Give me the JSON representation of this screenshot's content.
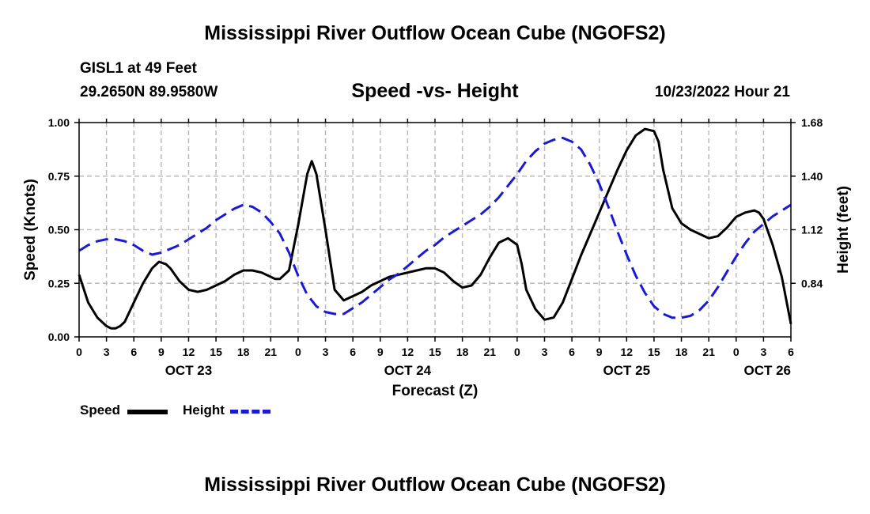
{
  "title": "Mississippi River Outflow Ocean Cube (NGOFS2)",
  "station": "GISL1 at 49 Feet",
  "coordinates": "29.2650N  89.9580W",
  "subtitle": "Speed -vs- Height",
  "datetime": "10/23/2022 Hour 21",
  "footer_title": "Mississippi River Outflow Ocean Cube (NGOFS2)",
  "legend": {
    "speed_label": "Speed",
    "height_label": "Height"
  },
  "colors": {
    "speed": "#000000",
    "height": "#1a1ad6",
    "grid": "#bbbbbb"
  },
  "chart_data": {
    "type": "line",
    "xlabel": "Forecast (Z)",
    "ylabel_left": "Speed (Knots)",
    "ylabel_right": "Height (feet)",
    "xlim": [
      0,
      78
    ],
    "ylim_left": [
      0,
      1
    ],
    "ylim_right": [
      0.56,
      1.68
    ],
    "grid": true,
    "x_tick_labels": [
      "0",
      "3",
      "6",
      "9",
      "12",
      "15",
      "18",
      "21",
      "0",
      "3",
      "6",
      "9",
      "12",
      "15",
      "18",
      "21",
      "0",
      "3",
      "6",
      "9",
      "12",
      "15",
      "18",
      "21",
      "0",
      "3",
      "6"
    ],
    "left_ticks": [
      {
        "value": 0,
        "label": "0.00"
      },
      {
        "value": 0.25,
        "label": "0.25"
      },
      {
        "value": 0.5,
        "label": "0.50"
      },
      {
        "value": 0.75,
        "label": "0.75"
      },
      {
        "value": 1.0,
        "label": "1.00"
      }
    ],
    "right_ticks": [
      {
        "value": 0.84,
        "label": "0.84"
      },
      {
        "value": 1.12,
        "label": "1.12"
      },
      {
        "value": 1.4,
        "label": "1.40"
      },
      {
        "value": 1.68,
        "label": "1.68"
      }
    ],
    "day_labels": [
      {
        "hour": 12,
        "label": "OCT 23"
      },
      {
        "hour": 36,
        "label": "OCT 24"
      },
      {
        "hour": 60,
        "label": "OCT 25"
      },
      {
        "hour": 75,
        "label": "OCT 26"
      }
    ],
    "series": [
      {
        "name": "Speed",
        "axis": "left",
        "style": "solid",
        "x": [
          0,
          1,
          2,
          3,
          3.5,
          4,
          4.5,
          5,
          6,
          7,
          8,
          8.75,
          9.5,
          10,
          11,
          12,
          13,
          14,
          15,
          16,
          17,
          18,
          19,
          20,
          21,
          21.5,
          22,
          23,
          24,
          25,
          25.5,
          26,
          27,
          28,
          29,
          30,
          31,
          32,
          33,
          34,
          35,
          36,
          37,
          38,
          39,
          40,
          41,
          42,
          43,
          44,
          45,
          46,
          47,
          48,
          48.5,
          49,
          50,
          51,
          52,
          53,
          54,
          55,
          56,
          57,
          58,
          59,
          60,
          61,
          62,
          63,
          63.5,
          64,
          65,
          66,
          67,
          68,
          69,
          70,
          71,
          72,
          73,
          74,
          74.5,
          75,
          76,
          77,
          78
        ],
        "values": [
          0.29,
          0.16,
          0.09,
          0.05,
          0.04,
          0.04,
          0.05,
          0.07,
          0.16,
          0.25,
          0.32,
          0.35,
          0.34,
          0.32,
          0.26,
          0.22,
          0.21,
          0.22,
          0.24,
          0.26,
          0.29,
          0.31,
          0.31,
          0.3,
          0.28,
          0.27,
          0.27,
          0.31,
          0.52,
          0.76,
          0.82,
          0.76,
          0.5,
          0.22,
          0.17,
          0.19,
          0.21,
          0.24,
          0.26,
          0.28,
          0.29,
          0.3,
          0.31,
          0.32,
          0.32,
          0.3,
          0.26,
          0.23,
          0.24,
          0.29,
          0.37,
          0.44,
          0.46,
          0.43,
          0.34,
          0.22,
          0.13,
          0.08,
          0.09,
          0.16,
          0.27,
          0.38,
          0.48,
          0.58,
          0.68,
          0.78,
          0.87,
          0.94,
          0.97,
          0.96,
          0.91,
          0.78,
          0.6,
          0.53,
          0.5,
          0.48,
          0.46,
          0.47,
          0.51,
          0.56,
          0.58,
          0.59,
          0.58,
          0.55,
          0.43,
          0.28,
          0.06
        ]
      },
      {
        "name": "Height",
        "axis": "right",
        "style": "dashed",
        "x": [
          0,
          1,
          2,
          3,
          4,
          5,
          6,
          7,
          8,
          9,
          10,
          11,
          12,
          13,
          14,
          15,
          16,
          17,
          18,
          19,
          20,
          21,
          22,
          23,
          24,
          25,
          26,
          27,
          28,
          29,
          30,
          31,
          32,
          33,
          34,
          35,
          36,
          37,
          38,
          39,
          40,
          41,
          42,
          43,
          44,
          45,
          46,
          47,
          48,
          49,
          50,
          51,
          52,
          53,
          54,
          55,
          56,
          57,
          58,
          59,
          60,
          61,
          62,
          63,
          64,
          65,
          66,
          67,
          68,
          69,
          70,
          71,
          72,
          73,
          74,
          75,
          76,
          77,
          78
        ],
        "values": [
          1.01,
          1.04,
          1.06,
          1.07,
          1.07,
          1.06,
          1.04,
          1.01,
          0.99,
          1.0,
          1.02,
          1.04,
          1.07,
          1.1,
          1.13,
          1.17,
          1.2,
          1.23,
          1.25,
          1.24,
          1.21,
          1.16,
          1.1,
          1.0,
          0.88,
          0.78,
          0.72,
          0.69,
          0.68,
          0.68,
          0.71,
          0.74,
          0.78,
          0.82,
          0.86,
          0.89,
          0.93,
          0.97,
          1.01,
          1.04,
          1.08,
          1.11,
          1.14,
          1.17,
          1.2,
          1.24,
          1.29,
          1.35,
          1.41,
          1.48,
          1.53,
          1.57,
          1.59,
          1.6,
          1.58,
          1.54,
          1.46,
          1.36,
          1.24,
          1.11,
          0.99,
          0.88,
          0.79,
          0.72,
          0.68,
          0.66,
          0.66,
          0.67,
          0.7,
          0.75,
          0.82,
          0.9,
          0.98,
          1.05,
          1.11,
          1.15,
          1.19,
          1.22,
          1.25
        ]
      }
    ]
  }
}
